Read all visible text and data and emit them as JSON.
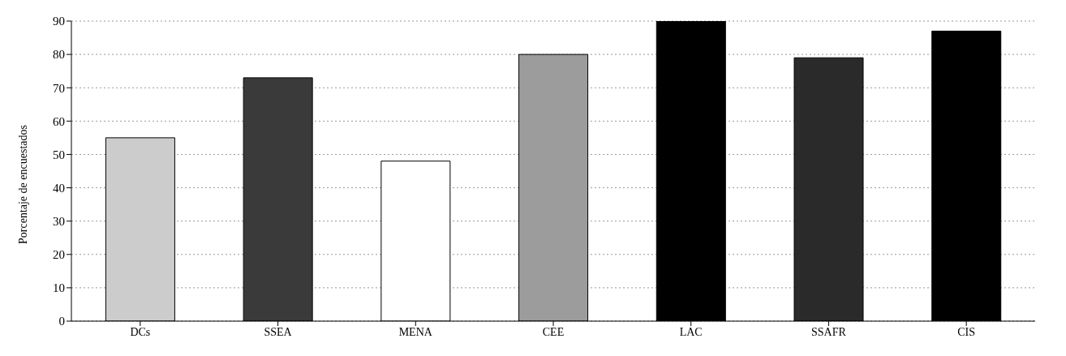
{
  "chart_data": {
    "type": "bar",
    "ylabel": "Porcentaje de encuestados",
    "categories": [
      "DCs",
      "SSEA",
      "MENA",
      "CEE",
      "LAC",
      "SSAFR",
      "CIS"
    ],
    "values": [
      55,
      73,
      48,
      80,
      90,
      79,
      87
    ],
    "colors": [
      "#cccccc",
      "#3a3a3a",
      "#ffffff",
      "#9c9c9c",
      "#000000",
      "#2a2a2a",
      "#000000"
    ],
    "ylim": [
      0,
      90
    ],
    "yticks": [
      0,
      10,
      20,
      30,
      40,
      50,
      60,
      70,
      80,
      90
    ],
    "grid": "y"
  }
}
